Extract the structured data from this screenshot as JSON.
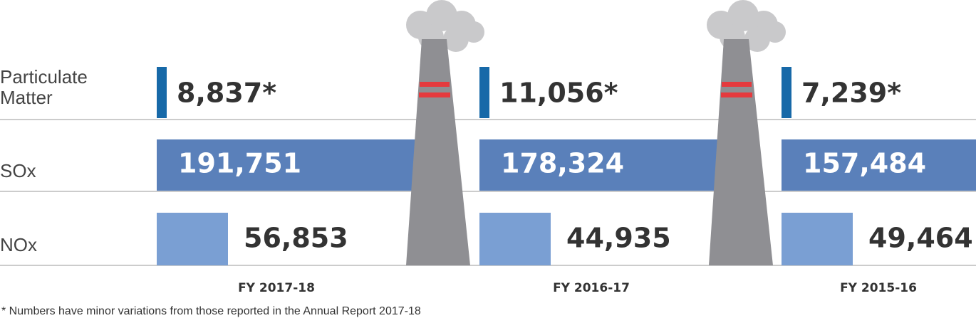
{
  "columns": [
    "FY 2017-18",
    "FY 2016-17",
    "FY 2015-16"
  ],
  "rows": [
    {
      "label": "Particulate Matter",
      "values": [
        "8,837*",
        "11,056*",
        "7,239*"
      ]
    },
    {
      "label": "SOx",
      "values": [
        "191,751",
        "178,324",
        "157,484"
      ]
    },
    {
      "label": "NOx",
      "values": [
        "56,853",
        "44,935",
        "49,464"
      ]
    }
  ],
  "footnote": "* Numbers have minor variations from those reported in the Annual Report 2017-18"
}
